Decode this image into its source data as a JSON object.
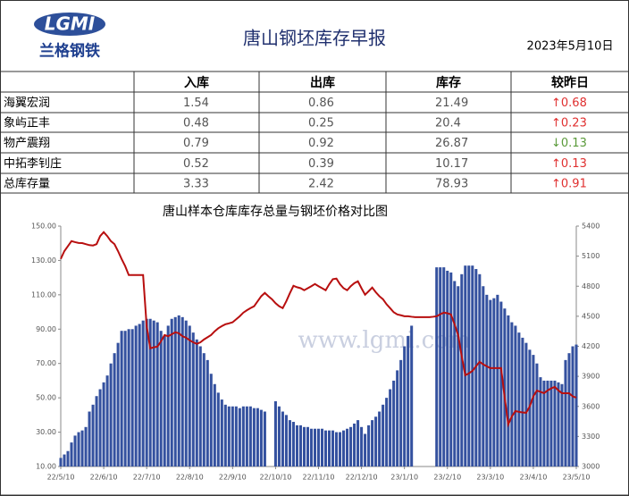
{
  "header": {
    "logo": "LGMI",
    "brand": "兰格钢铁",
    "title": "唐山钢坯库存早报",
    "date": "2023年5月10日"
  },
  "table": {
    "columns": [
      "",
      "入库",
      "出库",
      "库存",
      "较昨日"
    ],
    "rows": [
      [
        "海翼宏润",
        "1.54",
        "0.86",
        "21.49",
        "↑0.68"
      ],
      [
        "象屿正丰",
        "0.48",
        "0.25",
        "20.4",
        "↑0.23"
      ],
      [
        "物产震翔",
        "0.79",
        "0.92",
        "26.87",
        "↓0.13"
      ],
      [
        "中拓李钊庄",
        "0.52",
        "0.39",
        "10.17",
        "↑0.13"
      ],
      [
        "总库存量",
        "3.33",
        "2.42",
        "78.93",
        "↑0.91"
      ]
    ],
    "change_colors": [
      "#e03030",
      "#e03030",
      "#5a9a3a",
      "#e03030",
      "#e03030"
    ]
  },
  "chart_data": {
    "type": "bar-line",
    "title": "唐山样本仓库库存总量与钢坯价格对比图",
    "watermark": "www.lgmi.com",
    "categories": [
      "22/5/10",
      null,
      null,
      null,
      null,
      null,
      null,
      null,
      null,
      null,
      null,
      null,
      "22/6/10",
      null,
      null,
      null,
      null,
      null,
      null,
      null,
      null,
      null,
      null,
      null,
      "22/7/10",
      null,
      null,
      null,
      null,
      null,
      null,
      null,
      null,
      null,
      null,
      null,
      "22/8/10",
      null,
      null,
      null,
      null,
      null,
      null,
      null,
      null,
      null,
      null,
      null,
      "22/9/10",
      null,
      null,
      null,
      null,
      null,
      null,
      null,
      null,
      null,
      null,
      null,
      "22/10/10",
      null,
      null,
      null,
      null,
      null,
      null,
      null,
      null,
      null,
      null,
      null,
      "22/11/10",
      null,
      null,
      null,
      null,
      null,
      null,
      null,
      null,
      null,
      null,
      null,
      "22/12/10",
      null,
      null,
      null,
      null,
      null,
      null,
      null,
      null,
      null,
      null,
      null,
      "23/1/10",
      null,
      null,
      null,
      null,
      null,
      null,
      null,
      null,
      null,
      null,
      null,
      "23/2/10",
      null,
      null,
      null,
      null,
      null,
      null,
      null,
      null,
      null,
      null,
      null,
      "23/3/10",
      null,
      null,
      null,
      null,
      null,
      null,
      null,
      null,
      null,
      null,
      null,
      "23/4/10",
      null,
      null,
      null,
      null,
      null,
      null,
      null,
      null,
      null,
      null,
      null,
      "23/5/10"
    ],
    "series": [
      {
        "name": "库存总量",
        "kind": "bar",
        "color": "#34519f",
        "values": [
          15,
          17,
          19,
          24,
          28,
          30,
          31,
          33,
          42,
          46,
          51,
          55,
          59,
          63,
          70,
          76,
          82,
          89,
          89,
          90,
          90,
          92,
          93,
          95,
          96,
          96,
          95,
          94,
          89,
          86,
          92,
          96,
          97,
          98,
          97,
          95,
          92,
          88,
          84,
          80,
          76,
          72,
          64,
          58,
          53,
          49,
          46,
          45,
          45,
          45,
          44,
          45,
          45,
          45,
          44,
          44,
          43,
          42,
          null,
          null,
          48,
          45,
          42,
          40,
          37,
          36,
          34,
          34,
          33,
          33,
          32,
          32,
          32,
          32,
          31,
          31,
          31,
          30,
          30,
          31,
          32,
          33,
          35,
          37,
          33,
          29,
          34,
          37,
          39,
          42,
          46,
          50,
          55,
          60,
          66,
          72,
          80,
          86,
          92,
          null,
          null,
          null,
          null,
          null,
          null,
          126,
          126,
          126,
          124,
          123,
          118,
          115,
          122,
          127,
          127,
          127,
          125,
          122,
          115,
          110,
          107,
          108,
          110,
          106,
          102,
          98,
          94,
          92,
          88,
          85,
          82,
          78,
          75,
          70,
          62,
          60,
          60,
          60,
          60,
          59,
          58,
          72,
          76,
          80,
          81
        ]
      },
      {
        "name": "钢坯价格",
        "kind": "line",
        "axis": "y2",
        "color": "#b80f0f",
        "values": [
          5072,
          5150,
          5200,
          5250,
          5240,
          5232,
          5230,
          5220,
          5210,
          5206,
          5220,
          5300,
          5340,
          5300,
          5250,
          5220,
          5150,
          5072,
          5000,
          4911,
          4911,
          4911,
          4911,
          4911,
          4400,
          4180,
          4190,
          4197,
          4250,
          4313,
          4300,
          4320,
          4340,
          4330,
          4300,
          4286,
          4260,
          4240,
          4224,
          4240,
          4268,
          4290,
          4313,
          4350,
          4380,
          4402,
          4420,
          4429,
          4440,
          4470,
          4500,
          4536,
          4560,
          4581,
          4600,
          4650,
          4700,
          4733,
          4700,
          4670,
          4630,
          4600,
          4581,
          4650,
          4730,
          4804,
          4790,
          4780,
          4760,
          4780,
          4800,
          4822,
          4800,
          4780,
          4760,
          4820,
          4870,
          4876,
          4820,
          4780,
          4760,
          4800,
          4830,
          4849,
          4780,
          4715,
          4750,
          4786,
          4740,
          4700,
          4670,
          4620,
          4581,
          4540,
          4518,
          4510,
          4500,
          4500,
          4495,
          4491,
          4491,
          4491,
          4491,
          4491,
          4495,
          4500,
          4520,
          4536,
          4530,
          4518,
          4420,
          4313,
          4100,
          3911,
          3930,
          3955,
          4000,
          4045,
          4020,
          4000,
          3982,
          3982,
          3982,
          3982,
          3688,
          3420,
          3500,
          3554,
          3545,
          3540,
          3536,
          3600,
          3700,
          3759,
          3745,
          3732,
          3760,
          3780,
          3795,
          3760,
          3732,
          3732,
          3732,
          3700,
          3688
        ]
      }
    ],
    "ylim": [
      10,
      150
    ],
    "yticks": [
      {
        "value": 10,
        "label": "10.00"
      },
      {
        "value": 30,
        "label": "30.00"
      },
      {
        "value": 50,
        "label": "50.00"
      },
      {
        "value": 70,
        "label": "70.00"
      },
      {
        "value": 90,
        "label": "90.00"
      },
      {
        "value": 110,
        "label": "110.00"
      },
      {
        "value": 130,
        "label": "130.00"
      },
      {
        "value": 150,
        "label": "150.00"
      }
    ],
    "y2lim": [
      3000,
      5400
    ],
    "y2ticks": [
      3000,
      3300,
      3600,
      3900,
      4200,
      4500,
      4800,
      5100,
      5400
    ]
  }
}
